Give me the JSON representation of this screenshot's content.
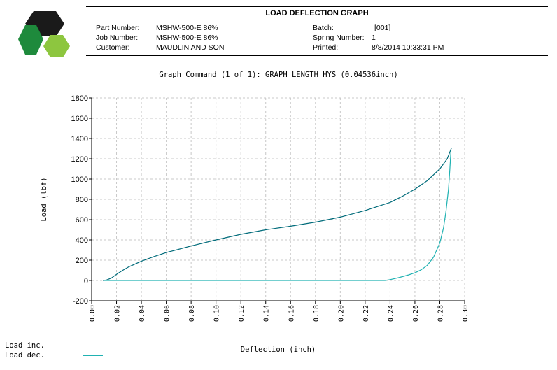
{
  "report": {
    "title": "LOAD DEFLECTION GRAPH",
    "fields": [
      {
        "label": "Part Number:",
        "value": "MSHW-500-E 86%"
      },
      {
        "label": "Job Number:",
        "value": "MSHW-500-E 86%"
      },
      {
        "label": "Customer:",
        "value": "MAUDLIN AND SON"
      },
      {
        "label": "Batch:",
        "value": "[001]"
      },
      {
        "label": "Spring Number:",
        "value": "1"
      },
      {
        "label": "Printed:",
        "value": "8/8/2014 10:33:31 PM"
      }
    ]
  },
  "logo": {
    "icon": "hexagon-logo-icon",
    "colors": [
      "#1a1a1a",
      "#1e8a3c",
      "#8dc63f"
    ]
  },
  "graph_command": "Graph Command (1 of 1): GRAPH LENGTH HYS (0.04536inch)",
  "chart_data": {
    "type": "line",
    "title": "",
    "xlabel": "Deflection (inch)",
    "ylabel": "Load (lbf)",
    "xlim": [
      0.0,
      0.3
    ],
    "ylim": [
      -200,
      1800
    ],
    "x_ticks": [
      "0.00",
      "0.02",
      "0.04",
      "0.06",
      "0.08",
      "0.10",
      "0.12",
      "0.14",
      "0.16",
      "0.18",
      "0.20",
      "0.22",
      "0.24",
      "0.26",
      "0.28",
      "0.30"
    ],
    "y_ticks": [
      "-200",
      "0",
      "200",
      "400",
      "600",
      "800",
      "1000",
      "1200",
      "1400",
      "1600",
      "1800"
    ],
    "grid": true,
    "legend_position": "bottom-left",
    "series": [
      {
        "name": "Load inc.",
        "color": "#006b7a",
        "x": [
          0.009,
          0.012,
          0.016,
          0.02,
          0.025,
          0.03,
          0.04,
          0.05,
          0.06,
          0.08,
          0.1,
          0.12,
          0.14,
          0.16,
          0.18,
          0.2,
          0.22,
          0.24,
          0.25,
          0.26,
          0.27,
          0.28,
          0.286,
          0.2895
        ],
        "y": [
          0,
          5,
          25,
          60,
          100,
          135,
          190,
          235,
          275,
          340,
          400,
          455,
          500,
          535,
          575,
          625,
          690,
          770,
          830,
          900,
          985,
          1100,
          1200,
          1310
        ]
      },
      {
        "name": "Load dec.",
        "color": "#20b2b2",
        "x": [
          0.01,
          0.05,
          0.1,
          0.15,
          0.2,
          0.236,
          0.24,
          0.245,
          0.25,
          0.255,
          0.26,
          0.265,
          0.27,
          0.275,
          0.28,
          0.283,
          0.285,
          0.287,
          0.288,
          0.289
        ],
        "y": [
          0,
          0,
          0,
          0,
          0,
          0,
          8,
          22,
          38,
          55,
          75,
          105,
          150,
          230,
          370,
          520,
          680,
          900,
          1080,
          1290
        ]
      }
    ]
  }
}
